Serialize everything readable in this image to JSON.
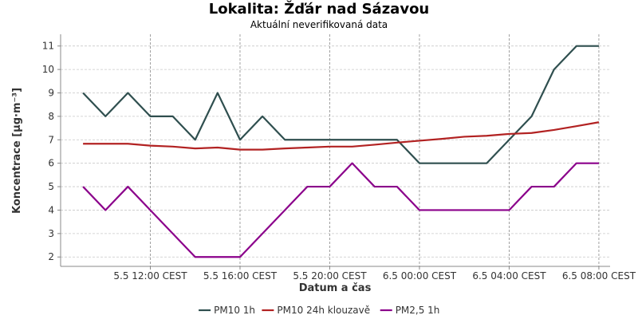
{
  "chart_data": {
    "type": "line",
    "title": "Lokalita: Žďár nad Sázavou",
    "subtitle": "Aktuální neverifikovaná data",
    "xlabel": "Datum a čas",
    "ylabel": "Koncentrace [µg·m⁻³]",
    "ylim": [
      1.6,
      11.5
    ],
    "yticks": [
      2,
      3,
      4,
      5,
      6,
      7,
      8,
      9,
      10,
      11
    ],
    "xlim": [
      "5.5 08:00 CEST",
      "6.5 08:30 CEST"
    ],
    "xticks": [
      {
        "label": "5.5 12:00 CEST",
        "x": "5.5 12:00"
      },
      {
        "label": "5.5 16:00 CEST",
        "x": "5.5 16:00"
      },
      {
        "label": "5.5 20:00 CEST",
        "x": "5.5 20:00"
      },
      {
        "label": "6.5 00:00 CEST",
        "x": "6.5 00:00"
      },
      {
        "label": "6.5 04:00 CEST",
        "x": "6.5 04:00"
      },
      {
        "label": "6.5 08:00 CEST",
        "x": "6.5 08:00"
      }
    ],
    "grid": true,
    "legend_position": "bottom",
    "x": [
      "5.5 09:00",
      "5.5 10:00",
      "5.5 11:00",
      "5.5 12:00",
      "5.5 13:00",
      "5.5 14:00",
      "5.5 15:00",
      "5.5 16:00",
      "5.5 17:00",
      "5.5 18:00",
      "5.5 19:00",
      "5.5 20:00",
      "5.5 21:00",
      "5.5 22:00",
      "5.5 23:00",
      "6.5 00:00",
      "6.5 01:00",
      "6.5 02:00",
      "6.5 03:00",
      "6.5 04:00",
      "6.5 05:00",
      "6.5 06:00",
      "6.5 07:00",
      "6.5 08:00"
    ],
    "series": [
      {
        "name": "PM10 1h",
        "color": "#2f4f4f",
        "values": [
          9,
          8,
          9,
          8,
          8,
          7,
          9,
          7,
          8,
          7,
          7,
          7,
          7,
          7,
          7,
          6,
          6,
          6,
          6,
          7,
          8,
          10,
          11,
          11
        ]
      },
      {
        "name": "PM10 24h klouzavě",
        "color": "#b22222",
        "values": [
          6.83,
          6.83,
          6.83,
          6.75,
          6.71,
          6.63,
          6.67,
          6.58,
          6.58,
          6.63,
          6.67,
          6.71,
          6.71,
          6.79,
          6.88,
          6.96,
          7.04,
          7.13,
          7.17,
          7.25,
          7.29,
          7.42,
          7.58,
          7.75
        ]
      },
      {
        "name": "PM2,5 1h",
        "color": "#8b008b",
        "values": [
          5,
          4,
          5,
          4,
          3,
          2,
          2,
          2,
          3,
          4,
          5,
          5,
          6,
          5,
          5,
          4,
          4,
          4,
          4,
          4,
          5,
          5,
          6,
          6
        ]
      }
    ]
  }
}
